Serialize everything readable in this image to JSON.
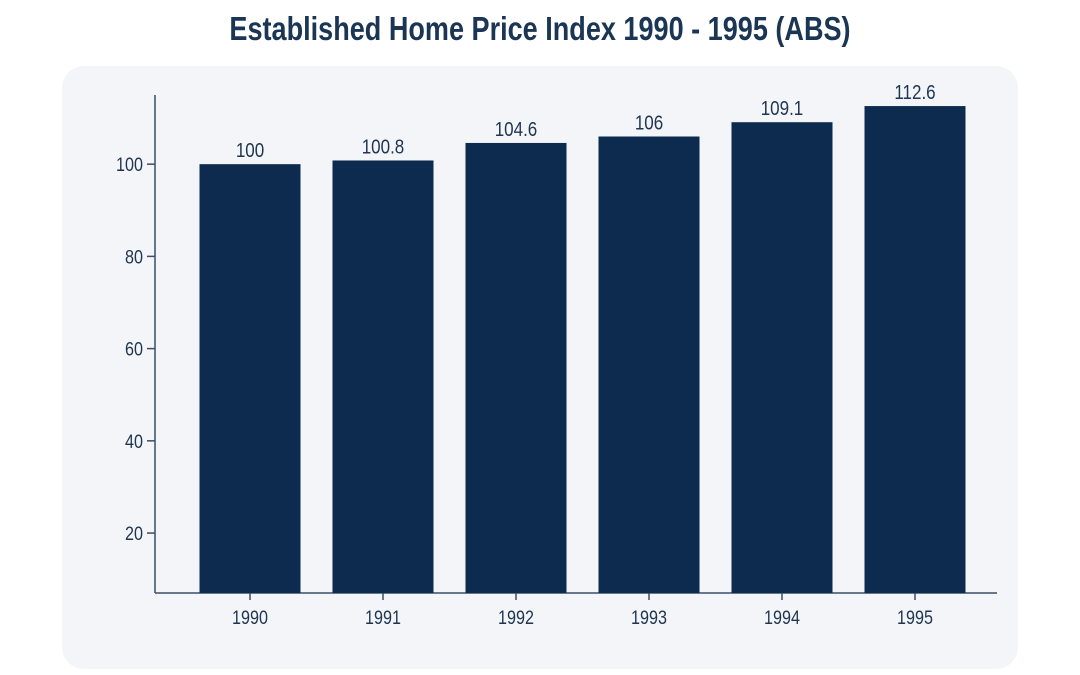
{
  "chart_data": {
    "type": "bar",
    "title": "Established Home Price Index 1990 - 1995 (ABS)",
    "xlabel": "",
    "ylabel": "",
    "categories": [
      "1990",
      "1991",
      "1992",
      "1993",
      "1994",
      "1995"
    ],
    "values": [
      100,
      100.8,
      104.6,
      106,
      109.1,
      112.6
    ],
    "data_labels": [
      "100",
      "100.8",
      "104.6",
      "106",
      "109.1",
      "112.6"
    ],
    "yticks": [
      20,
      40,
      60,
      80,
      100
    ],
    "ylim": [
      7,
      115
    ],
    "grid": false,
    "colors": {
      "bar": "#0d2b4e",
      "panel": "#f3f5f9",
      "text": "#1f3550"
    }
  }
}
